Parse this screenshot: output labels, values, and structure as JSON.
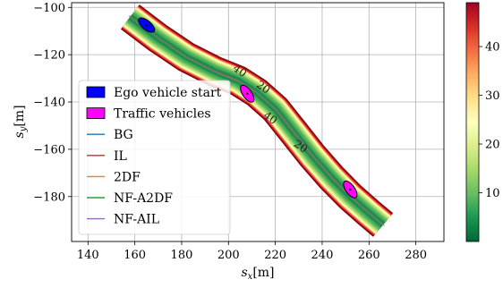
{
  "chart_data": {
    "type": "line",
    "xlabel": "s_x[m]",
    "ylabel": "s_y[m]",
    "xlabel_main": "s",
    "xlabel_sub": "x",
    "xlabel_unit": "[m]",
    "ylabel_main": "s",
    "ylabel_sub": "y",
    "ylabel_unit": "[m]",
    "xlim": [
      133,
      292
    ],
    "ylim": [
      -199,
      -98
    ],
    "xticks": [
      140,
      160,
      180,
      200,
      220,
      240,
      260,
      280
    ],
    "yticks": [
      -100,
      -120,
      -140,
      -160,
      -180
    ],
    "xtick_labels": [
      "140",
      "160",
      "180",
      "200",
      "220",
      "240",
      "260",
      "280"
    ],
    "ytick_labels": [
      "−100",
      "−120",
      "−140",
      "−160",
      "−180"
    ],
    "grid": true,
    "legend_position": "lower-left",
    "road_centerline": {
      "x": [
        158,
        170,
        182,
        194,
        204,
        212,
        220,
        228,
        236,
        244,
        252,
        260,
        266
      ],
      "y": [
        -104,
        -113,
        -121,
        -127,
        -131,
        -136,
        -143,
        -153,
        -163,
        -172,
        -180,
        -187,
        -192
      ]
    },
    "road_half_width": 6,
    "contour_labels": [
      {
        "text": "40",
        "x": 204,
        "y": -128
      },
      {
        "text": "20",
        "x": 214,
        "y": -135
      },
      {
        "text": "40",
        "x": 217,
        "y": -148
      },
      {
        "text": "20",
        "x": 230,
        "y": -160
      }
    ],
    "ego_vehicle": {
      "x": 165,
      "y": -107.5,
      "angle_deg": -40
    },
    "traffic_vehicles": [
      {
        "x": 208,
        "y": -136.5,
        "angle_deg": -55
      },
      {
        "x": 252,
        "y": -177,
        "angle_deg": -55
      }
    ],
    "series": [
      {
        "name": "Ego vehicle start",
        "marker": "patch",
        "color": "#0000ff"
      },
      {
        "name": "Traffic vehicles",
        "marker": "patch",
        "color": "#ff00ff"
      },
      {
        "name": "BG",
        "marker": "line",
        "color": "#1f77b4"
      },
      {
        "name": "IL",
        "marker": "line",
        "color": "#d62728"
      },
      {
        "name": "2DF",
        "marker": "line",
        "color": "#ff7f0e"
      },
      {
        "name": "NF-A2DF",
        "marker": "line",
        "color": "#2ca02c"
      },
      {
        "name": "NF-AIL",
        "marker": "line",
        "color": "#9467bd"
      }
    ],
    "colorbar": {
      "min": 0,
      "max": 49,
      "ticks": [
        10,
        20,
        30,
        40
      ],
      "tick_labels": [
        "10",
        "20",
        "30",
        "40"
      ],
      "colormap": "RdYlGn_r"
    }
  }
}
